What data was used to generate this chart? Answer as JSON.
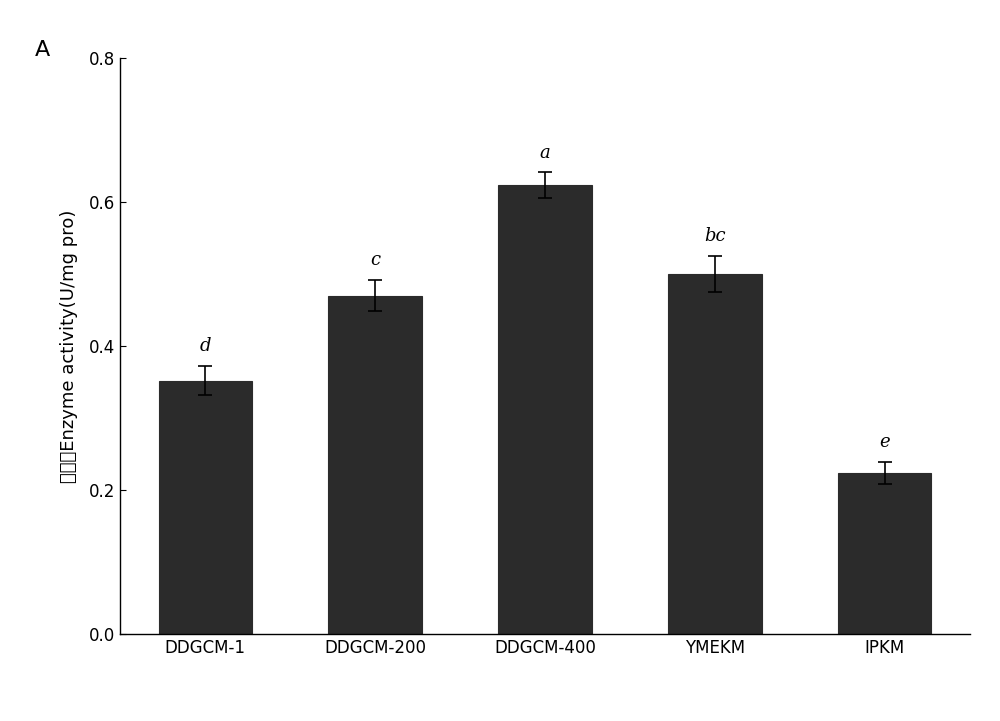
{
  "categories": [
    "DDGCM-1",
    "DDGCM-200",
    "DDGCM-400",
    "YMEKM",
    "IPKM"
  ],
  "values": [
    0.352,
    0.47,
    0.623,
    0.5,
    0.224
  ],
  "errors": [
    0.02,
    0.022,
    0.018,
    0.025,
    0.015
  ],
  "stat_labels": [
    "d",
    "c",
    "a",
    "bc",
    "e"
  ],
  "bar_color": "#2b2b2b",
  "bar_edgecolor": "#2b2b2b",
  "ylabel_chinese": "醂活力",
  "ylabel_english": "Enzyme activity(U/mg pro)",
  "ylim": [
    0.0,
    0.8
  ],
  "yticks": [
    0.0,
    0.2,
    0.4,
    0.6,
    0.8
  ],
  "panel_label": "A",
  "background_color": "#ffffff",
  "bar_width": 0.55,
  "label_fontsize": 13,
  "tick_fontsize": 12,
  "stat_fontsize": 13,
  "panel_fontsize": 16
}
